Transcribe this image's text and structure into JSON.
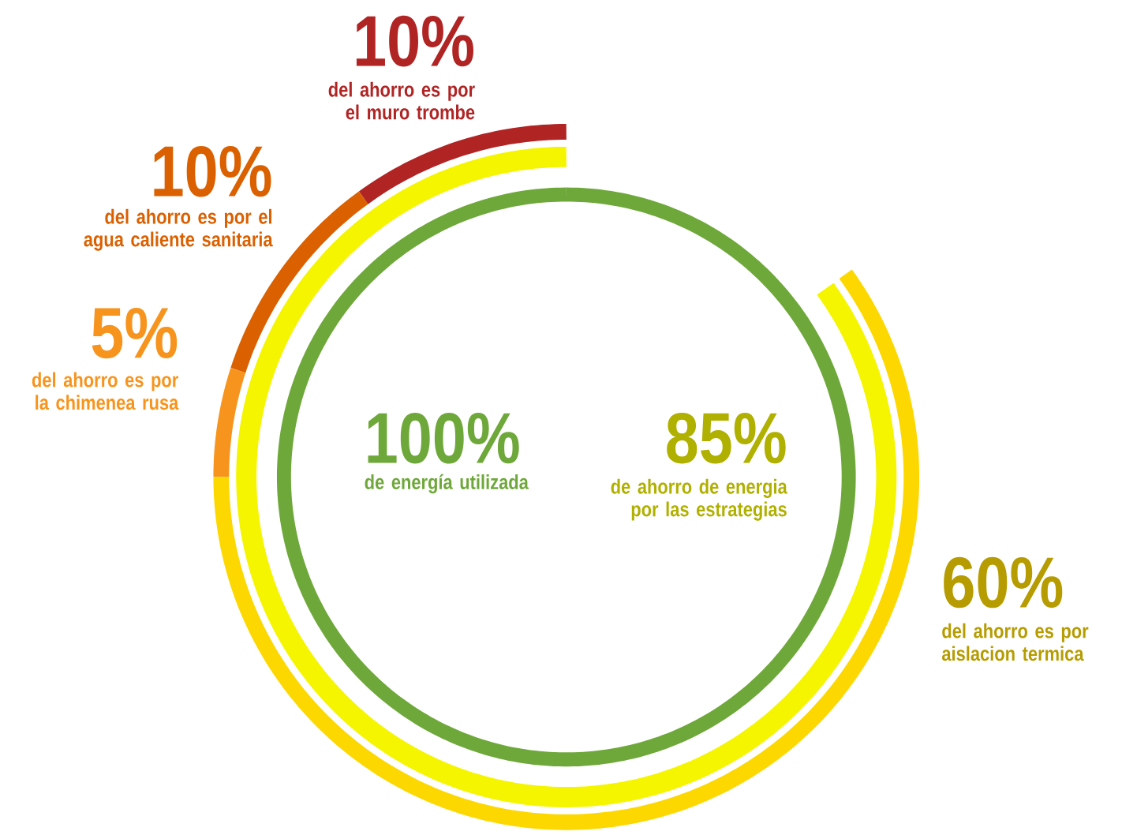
{
  "chart_data": [
    {
      "type": "other",
      "categories": [
        "de energía utilizada"
      ],
      "values": [
        100
      ],
      "value_labels": [
        "100%"
      ],
      "colors": [
        "#6fa83a"
      ]
    },
    {
      "type": "other",
      "categories": [
        "de ahorro de energia por las estrategias"
      ],
      "values": [
        85
      ],
      "value_labels": [
        "85%"
      ],
      "colors": [
        "#f5f500"
      ]
    },
    {
      "type": "other",
      "categories": [
        "del ahorro es por el muro trombe",
        "del ahorro es por el agua caliente sanitaria",
        "del ahorro es por la chimenea rusa",
        "del ahorro es por aislacion termica"
      ],
      "values": [
        10,
        10,
        5,
        60
      ],
      "value_labels": [
        "10%",
        "10%",
        "5%",
        "60%"
      ],
      "colors": [
        "#b02424",
        "#da6000",
        "#f7941d",
        "#fdd800"
      ]
    }
  ]
}
